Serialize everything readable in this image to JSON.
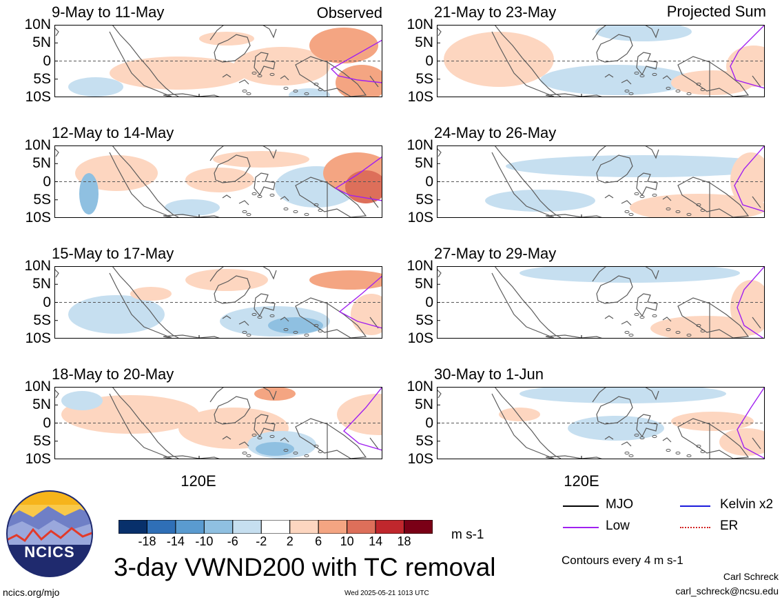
{
  "corner_labels": {
    "observed": "Observed",
    "projected": "Projected Sum"
  },
  "y_ticks": [
    "10N",
    "5N",
    "0",
    "5S",
    "10S"
  ],
  "x_tick": "120E",
  "panels": [
    {
      "id": "obs1",
      "title": "9-May to 11-May",
      "style": 0
    },
    {
      "id": "obs2",
      "title": "12-May to 14-May",
      "style": 1
    },
    {
      "id": "obs3",
      "title": "15-May to 17-May",
      "style": 2
    },
    {
      "id": "obs4",
      "title": "18-May to 20-May",
      "style": 3
    },
    {
      "id": "proj1",
      "title": "21-May to 23-May",
      "style": 4
    },
    {
      "id": "proj2",
      "title": "24-May to 26-May",
      "style": 5
    },
    {
      "id": "proj3",
      "title": "27-May to 29-May",
      "style": 6
    },
    {
      "id": "proj4",
      "title": "30-May to 1-Jun",
      "style": 7
    }
  ],
  "colorbar": {
    "colors": [
      "#08306b",
      "#2f6fb7",
      "#5a9bd0",
      "#8fc0e1",
      "#c6dff0",
      "#ffffff",
      "#fdd6c0",
      "#f4a582",
      "#dd6f5a",
      "#c0272d",
      "#7a0016"
    ],
    "ticks": [
      "-18",
      "-14",
      "-10",
      "-6",
      "-2",
      "2",
      "6",
      "10",
      "14",
      "18"
    ],
    "units": "m s-1"
  },
  "title": "3-day VWND200 with TC removal",
  "legend": {
    "mjo": "MJO",
    "kelvin": "Kelvin x2",
    "low": "Low",
    "er": "ER",
    "colors": {
      "mjo": "#000000",
      "kelvin": "#1a1adc",
      "low": "#a020f0",
      "er": "#d22020"
    }
  },
  "contours_note": "Contours every 4 m s-1",
  "logo_text": "NCICS",
  "footer": {
    "left": "ncics.org/mjo",
    "center": "Wed 2025-05-21 1013 UTC",
    "author": "Carl Schreck",
    "email": "carl_schreck@ncsu.edu"
  }
}
